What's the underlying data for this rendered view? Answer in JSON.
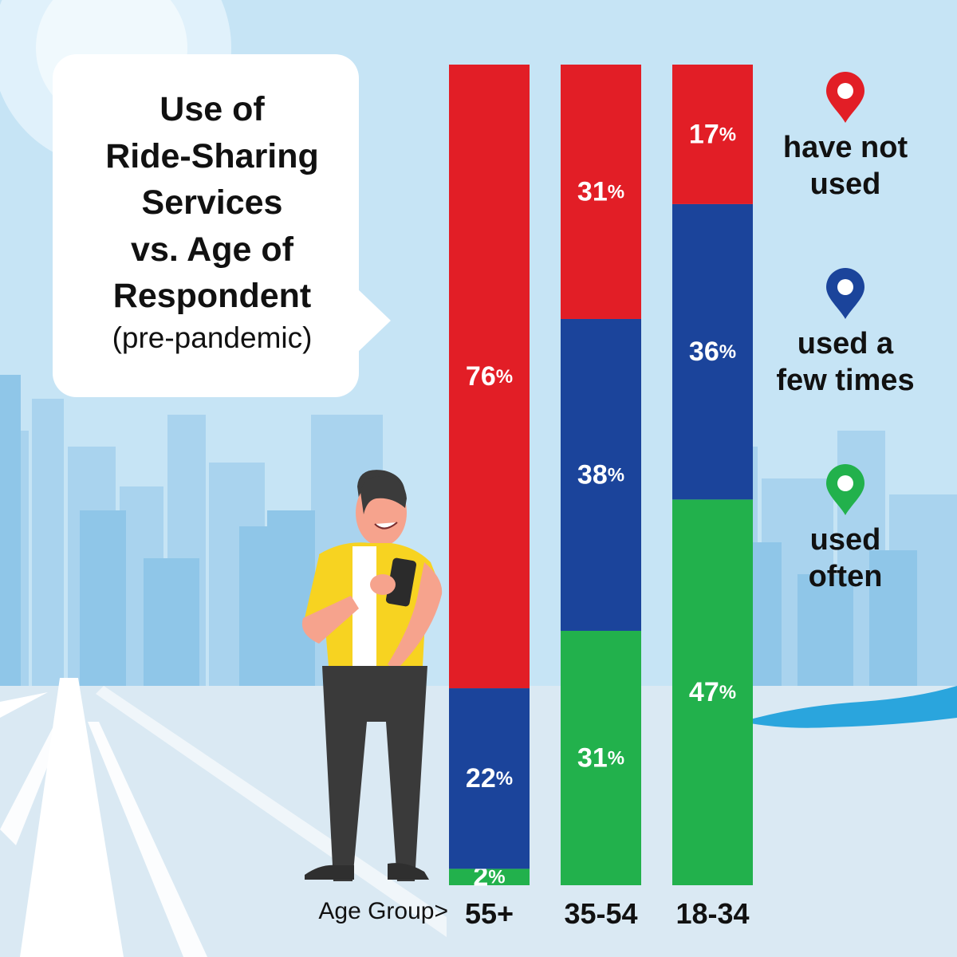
{
  "title_lines": [
    "Use of",
    "Ride-Sharing",
    "Services",
    "vs. Age of",
    "Respondent"
  ],
  "subtitle": "(pre-pandemic)",
  "axis_prefix": "Age Group>",
  "colors": {
    "have_not_used": "#e21e26",
    "used_few_times": "#1b449b",
    "used_often": "#22b14c",
    "sky": "#c9e6f6",
    "buildings": "#8fc6e8",
    "road": "#dbe9f3"
  },
  "legend": [
    {
      "label_lines": [
        "have not",
        "used"
      ],
      "color": "#e21e26",
      "icon": "map-pin-icon"
    },
    {
      "label_lines": [
        "used a",
        "few times"
      ],
      "color": "#1b449b",
      "icon": "map-pin-icon"
    },
    {
      "label_lines": [
        "used",
        "often"
      ],
      "color": "#22b14c",
      "icon": "map-pin-icon"
    }
  ],
  "chart_data": {
    "type": "bar",
    "stacked": true,
    "orientation": "vertical",
    "categories": [
      "55+",
      "35-54",
      "18-34"
    ],
    "series": [
      {
        "name": "used often",
        "values": [
          2,
          31,
          47
        ]
      },
      {
        "name": "used a few times",
        "values": [
          22,
          38,
          36
        ]
      },
      {
        "name": "have not used",
        "values": [
          76,
          31,
          17
        ]
      }
    ],
    "value_suffix": "%",
    "xlabel": "Age Group>",
    "ylim": [
      0,
      100
    ],
    "grid": false,
    "legend_position": "right"
  }
}
